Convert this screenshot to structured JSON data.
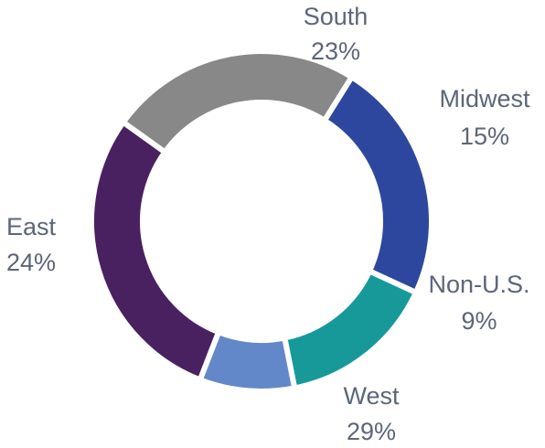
{
  "chart_data": {
    "type": "pie",
    "variant": "donut",
    "title": "",
    "categories": [
      "South",
      "Midwest",
      "Non-U.S.",
      "West",
      "East"
    ],
    "values": [
      23,
      15,
      9,
      29,
      24
    ],
    "value_labels": [
      "23%",
      "15%",
      "9%",
      "29%",
      "24%"
    ],
    "colors": [
      "#2e479e",
      "#17999a",
      "#6388c9",
      "#4a2160",
      "#888888"
    ],
    "start_angle_deg": 32,
    "direction": "clockwise",
    "legend": "none",
    "label_color": "#5b6678"
  }
}
